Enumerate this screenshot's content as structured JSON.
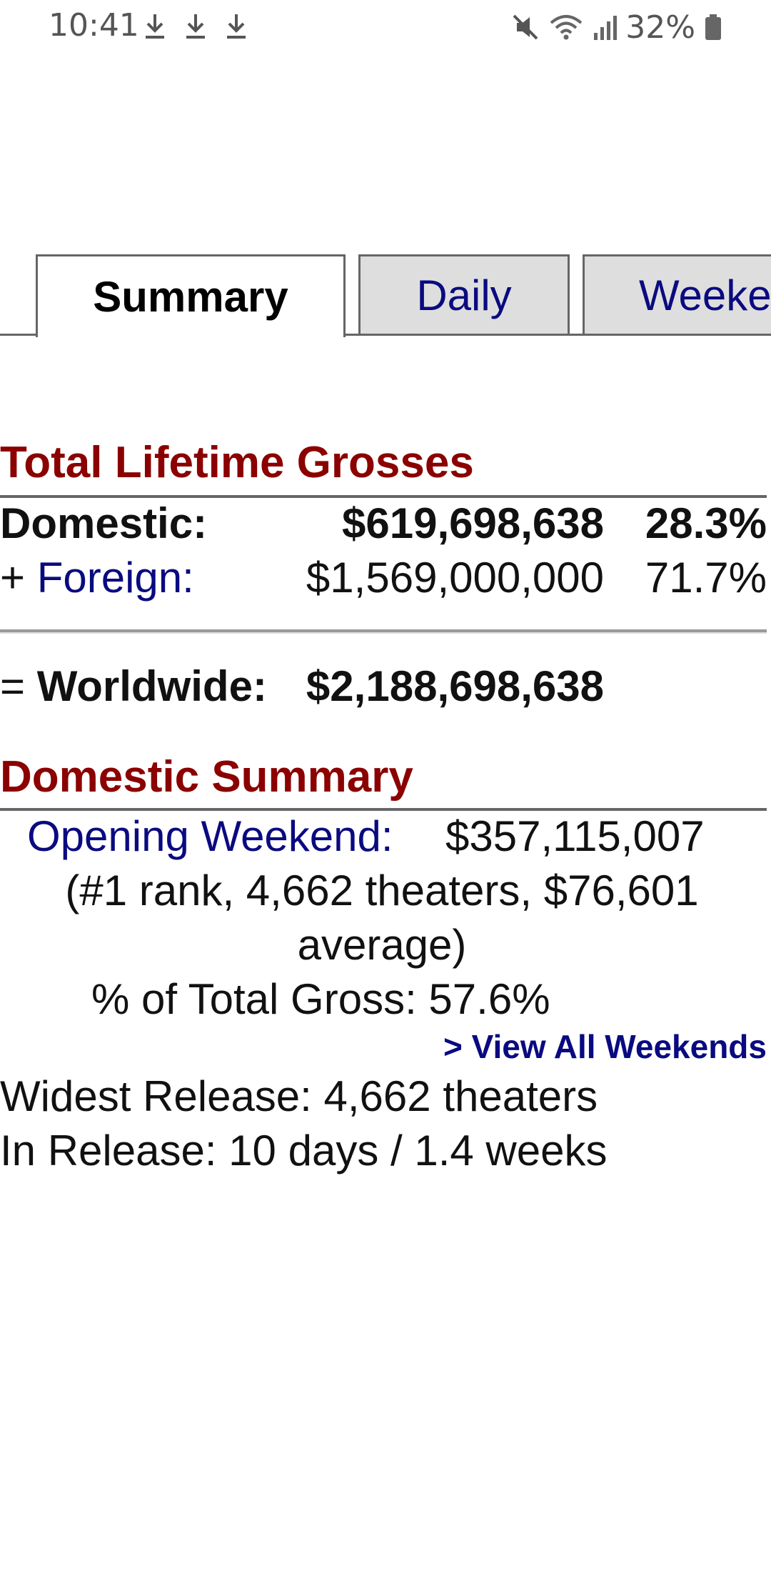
{
  "status_bar": {
    "time": "10:41",
    "download_icons": [
      "download-icon",
      "download-icon",
      "download-icon"
    ],
    "right_icons": [
      "mute-icon",
      "wifi-icon",
      "signal-icon"
    ],
    "battery_percent": "32%"
  },
  "tabs": [
    {
      "label": "Summary",
      "active": true
    },
    {
      "label": "Daily",
      "active": false
    },
    {
      "label": "Weeke",
      "active": false
    }
  ],
  "lifetime": {
    "title": "Total Lifetime Grosses",
    "domestic_label": "Domestic:",
    "domestic_value": "$619,698,638",
    "domestic_pct": "28.3%",
    "foreign_prefix": "+ ",
    "foreign_label": "Foreign:",
    "foreign_value": "$1,569,000,000",
    "foreign_pct": "71.7%",
    "worldwide_prefix": "= ",
    "worldwide_label": "Worldwide:",
    "worldwide_value": "$2,188,698,638"
  },
  "domestic_summary": {
    "title": "Domestic Summary",
    "opening_label": "Opening Weekend:",
    "opening_value": "$357,115,007",
    "opening_detail_line1": "(#1 rank, 4,662 theaters, $76,601",
    "opening_detail_line2": "average)",
    "pct_total_gross": "% of Total Gross: 57.6%",
    "view_all_link": "> View All Weekends",
    "widest_release": "Widest Release: 4,662 theaters",
    "in_release": "In Release: 10 days / 1.4 weeks"
  },
  "colors": {
    "section_title": "#8b0000",
    "link_blue": "#0a0a80",
    "tab_inactive_bg": "#dedede"
  }
}
